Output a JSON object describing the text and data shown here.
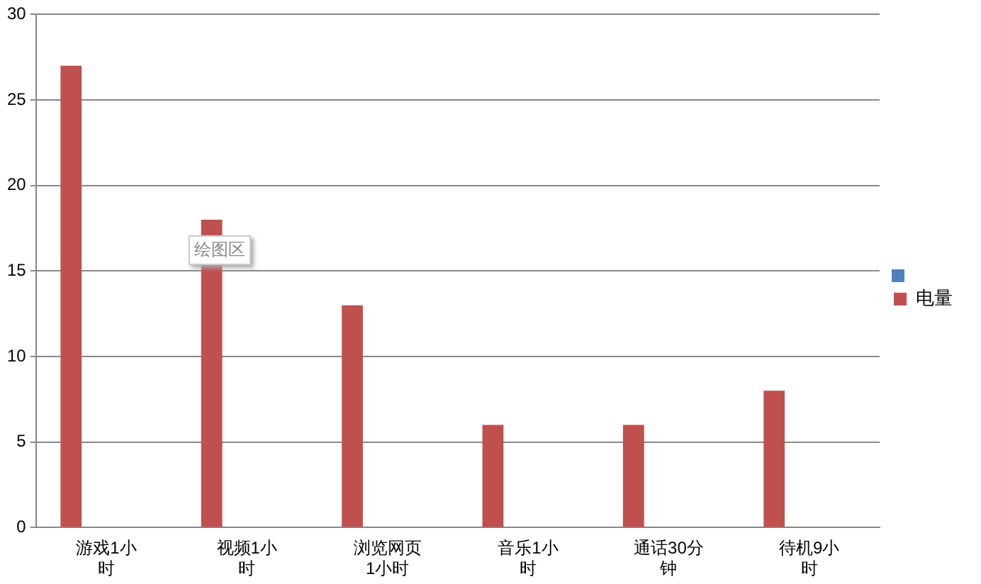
{
  "chart_data": {
    "type": "bar",
    "categories": [
      "游戏1小时",
      "视频1小时",
      "浏览网页1小时",
      "音乐1小时",
      "通话30分钟",
      "待机9小时"
    ],
    "series": [
      {
        "name": "电量",
        "color": "#c0504d",
        "values": [
          27,
          18,
          13,
          6,
          6,
          8
        ]
      },
      {
        "color": "#4f81bd",
        "values": [
          null,
          null,
          null,
          null,
          null,
          null
        ]
      }
    ],
    "ylim": [
      0,
      30
    ],
    "yticks": [
      0,
      5,
      10,
      15,
      20,
      25,
      30
    ],
    "grid": "y",
    "legend": "right",
    "annotations": [
      "绘图区"
    ]
  }
}
